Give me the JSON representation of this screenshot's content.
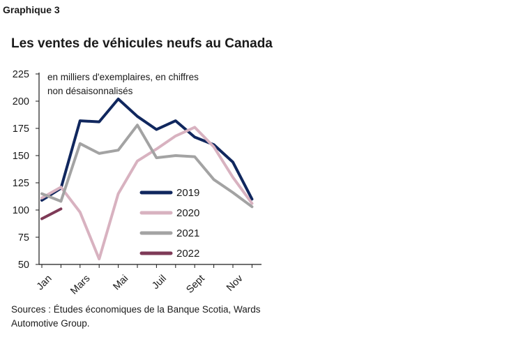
{
  "header": {
    "label": "Graphique 3"
  },
  "chart_data": {
    "type": "line",
    "title": "Les ventes de véhicules neufs au Canada",
    "units_note": "en milliers d'exemplaires, en chiffres non désaisonnalisés",
    "ylim": [
      50,
      225
    ],
    "yticks": [
      50,
      75,
      100,
      125,
      150,
      175,
      200,
      225
    ],
    "x_tick_labels": [
      "Jan",
      "Mars",
      "Mai",
      "Juil",
      "Sept",
      "Nov"
    ],
    "x_tick_months": [
      1,
      3,
      5,
      7,
      9,
      11
    ],
    "legend_position": "right-middle",
    "series": [
      {
        "name": "2019",
        "color": "#10275e",
        "x": [
          1,
          2,
          3,
          4,
          5,
          6,
          7,
          8,
          9,
          10,
          11,
          12
        ],
        "values": [
          109,
          120,
          182,
          181,
          202,
          186,
          174,
          182,
          167,
          160,
          144,
          110
        ]
      },
      {
        "name": "2020",
        "color": "#d8b2c0",
        "x": [
          1,
          2,
          3,
          4,
          5,
          6,
          7,
          8,
          9,
          10,
          11,
          12
        ],
        "values": [
          111,
          121,
          98,
          55,
          115,
          145,
          156,
          168,
          176,
          158,
          130,
          106
        ]
      },
      {
        "name": "2021",
        "color": "#a3a3a3",
        "x": [
          1,
          2,
          3,
          4,
          5,
          6,
          7,
          8,
          9,
          10,
          11,
          12
        ],
        "values": [
          115,
          108,
          161,
          152,
          155,
          178,
          148,
          150,
          149,
          128,
          116,
          103
        ]
      },
      {
        "name": "2022",
        "color": "#7e3a57",
        "x": [
          1,
          2
        ],
        "values": [
          92,
          101
        ]
      }
    ]
  },
  "sources": "Sources : Études économiques de la Banque Scotia, Wards Automotive Group."
}
